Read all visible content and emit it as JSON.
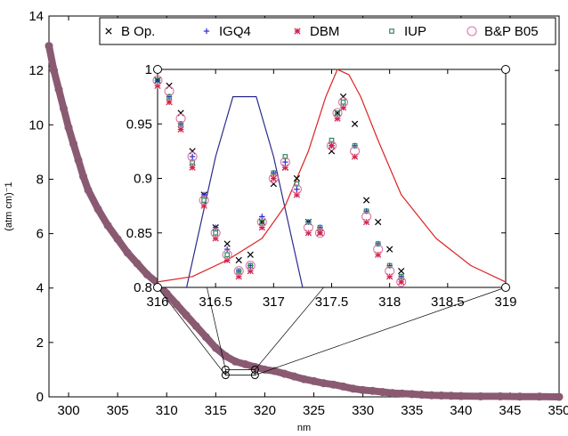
{
  "chart_data": [
    {
      "type": "scatter",
      "role": "main",
      "xlabel": "nm",
      "ylabel": "(atm cm)⁻1",
      "xlim": [
        298,
        350
      ],
      "ylim": [
        0,
        14
      ],
      "xticks": [
        "300",
        "305",
        "310",
        "315",
        "320",
        "325",
        "330",
        "335",
        "340",
        "345",
        "350"
      ],
      "yticks": [
        "0",
        "2",
        "4",
        "6",
        "8",
        "10",
        "12",
        "14"
      ],
      "grid": false,
      "legend_position": "top-right",
      "series": [
        {
          "name": "B&P B05",
          "marker": "circle",
          "color": "#8a5a72",
          "x": [
            298,
            298.5,
            299,
            299.5,
            300,
            300.5,
            301,
            301.5,
            302,
            303,
            304,
            305,
            306,
            307,
            308,
            309,
            310,
            311,
            312,
            313,
            314,
            315,
            316,
            317,
            318,
            319,
            320,
            321,
            322,
            323,
            324,
            325,
            326,
            327,
            328,
            329,
            330,
            331,
            332,
            333,
            334,
            335,
            336,
            337,
            338,
            339,
            340,
            342,
            344,
            346,
            348,
            350
          ],
          "y": [
            12.9,
            12.0,
            11.3,
            10.6,
            9.9,
            9.3,
            8.7,
            8.1,
            7.6,
            6.9,
            6.3,
            5.8,
            5.3,
            4.9,
            4.5,
            4.2,
            3.8,
            3.4,
            3.0,
            2.6,
            2.2,
            1.8,
            1.5,
            1.3,
            1.2,
            1.1,
            1.0,
            0.95,
            0.85,
            0.75,
            0.65,
            0.58,
            0.5,
            0.45,
            0.38,
            0.3,
            0.25,
            0.22,
            0.18,
            0.14,
            0.12,
            0.1,
            0.08,
            0.06,
            0.05,
            0.04,
            0.03,
            0.02,
            0.02,
            0.01,
            0.01,
            0.0
          ]
        }
      ]
    },
    {
      "type": "scatter",
      "role": "inset",
      "xlim": [
        316,
        319
      ],
      "ylim": [
        0.8,
        1.0
      ],
      "xticks": [
        "316",
        "316.5",
        "317",
        "317.5",
        "318",
        "318.5",
        "319"
      ],
      "yticks": [
        "0.8",
        "0.85",
        "0.9",
        "0.95",
        "1"
      ],
      "series": [
        {
          "name": "B Op.",
          "marker": "x",
          "color": "#000000",
          "x": [
            316.0,
            316.1,
            316.2,
            316.3,
            316.4,
            316.5,
            316.6,
            316.7,
            316.8,
            316.9,
            317.0,
            317.1,
            317.2,
            317.3,
            317.4,
            317.5,
            317.55,
            317.6,
            317.7,
            317.8,
            317.9,
            318.0,
            318.1
          ],
          "y": [
            0.99,
            0.985,
            0.96,
            0.925,
            0.885,
            0.855,
            0.84,
            0.825,
            0.83,
            0.86,
            0.895,
            0.91,
            0.9,
            0.86,
            0.85,
            0.925,
            0.96,
            0.975,
            0.95,
            0.88,
            0.86,
            0.835,
            0.815
          ]
        },
        {
          "name": "IGQ4",
          "marker": "plus",
          "color": "#2b2bd0",
          "x": [
            316.0,
            316.1,
            316.2,
            316.3,
            316.4,
            316.5,
            316.6,
            316.7,
            316.8,
            316.9,
            317.0,
            317.1,
            317.2,
            317.3,
            317.4,
            317.5,
            317.55,
            317.6,
            317.7,
            317.8,
            317.9,
            318.0,
            318.1
          ],
          "y": [
            0.99,
            0.975,
            0.95,
            0.92,
            0.885,
            0.855,
            0.835,
            0.815,
            0.82,
            0.865,
            0.905,
            0.915,
            0.89,
            0.86,
            0.855,
            0.93,
            0.955,
            0.965,
            0.93,
            0.87,
            0.84,
            0.82,
            0.81
          ]
        },
        {
          "name": "DBM",
          "marker": "star",
          "color": "#d0204a",
          "x": [
            316.0,
            316.1,
            316.2,
            316.3,
            316.4,
            316.5,
            316.6,
            316.7,
            316.8,
            316.9,
            317.0,
            317.1,
            317.2,
            317.3,
            317.4,
            317.5,
            317.55,
            317.6,
            317.7,
            317.8,
            317.9,
            318.0,
            318.1
          ],
          "y": [
            0.985,
            0.97,
            0.945,
            0.91,
            0.875,
            0.845,
            0.825,
            0.81,
            0.815,
            0.855,
            0.9,
            0.91,
            0.885,
            0.85,
            0.85,
            0.93,
            0.955,
            0.965,
            0.92,
            0.86,
            0.83,
            0.81,
            0.805
          ]
        },
        {
          "name": "IUP",
          "marker": "square",
          "color": "#2e8b57",
          "x": [
            316.0,
            316.1,
            316.2,
            316.3,
            316.4,
            316.5,
            316.6,
            316.7,
            316.8,
            316.9,
            317.0,
            317.1,
            317.2,
            317.3,
            317.4,
            317.5,
            317.55,
            317.6,
            317.7,
            317.8,
            317.9,
            318.0,
            318.1
          ],
          "y": [
            0.99,
            0.975,
            0.95,
            0.915,
            0.88,
            0.85,
            0.83,
            0.815,
            0.82,
            0.86,
            0.905,
            0.92,
            0.895,
            0.86,
            0.855,
            0.935,
            0.96,
            0.97,
            0.93,
            0.87,
            0.84,
            0.82,
            0.81
          ]
        },
        {
          "name": "B&P B05",
          "marker": "circle",
          "color": "#d977a8",
          "x": [
            316.0,
            316.1,
            316.2,
            316.3,
            316.4,
            316.5,
            316.6,
            316.7,
            316.8,
            316.9,
            317.0,
            317.1,
            317.2,
            317.3,
            317.4,
            317.5,
            317.55,
            317.6,
            317.7,
            317.8,
            317.9,
            318.0,
            318.1
          ],
          "y": [
            0.99,
            0.98,
            0.955,
            0.92,
            0.88,
            0.85,
            0.83,
            0.815,
            0.82,
            0.86,
            0.9,
            0.915,
            0.89,
            0.855,
            0.85,
            0.93,
            0.96,
            0.97,
            0.925,
            0.865,
            0.835,
            0.815,
            0.805
          ]
        }
      ],
      "lines": [
        {
          "color": "#2b2b8a",
          "x": [
            316.25,
            316.5,
            316.65,
            316.85,
            317.0,
            317.25
          ],
          "y": [
            0.8,
            0.92,
            0.975,
            0.975,
            0.92,
            0.8
          ]
        },
        {
          "color": "#dd2222",
          "x": [
            316.0,
            316.3,
            316.6,
            316.9,
            317.1,
            317.3,
            317.45,
            317.55,
            317.65,
            317.75,
            317.9,
            318.1,
            318.4,
            318.7,
            319.0
          ],
          "y": [
            0.805,
            0.81,
            0.825,
            0.845,
            0.875,
            0.925,
            0.975,
            1.0,
            0.995,
            0.975,
            0.935,
            0.885,
            0.845,
            0.82,
            0.805
          ]
        }
      ]
    }
  ]
}
